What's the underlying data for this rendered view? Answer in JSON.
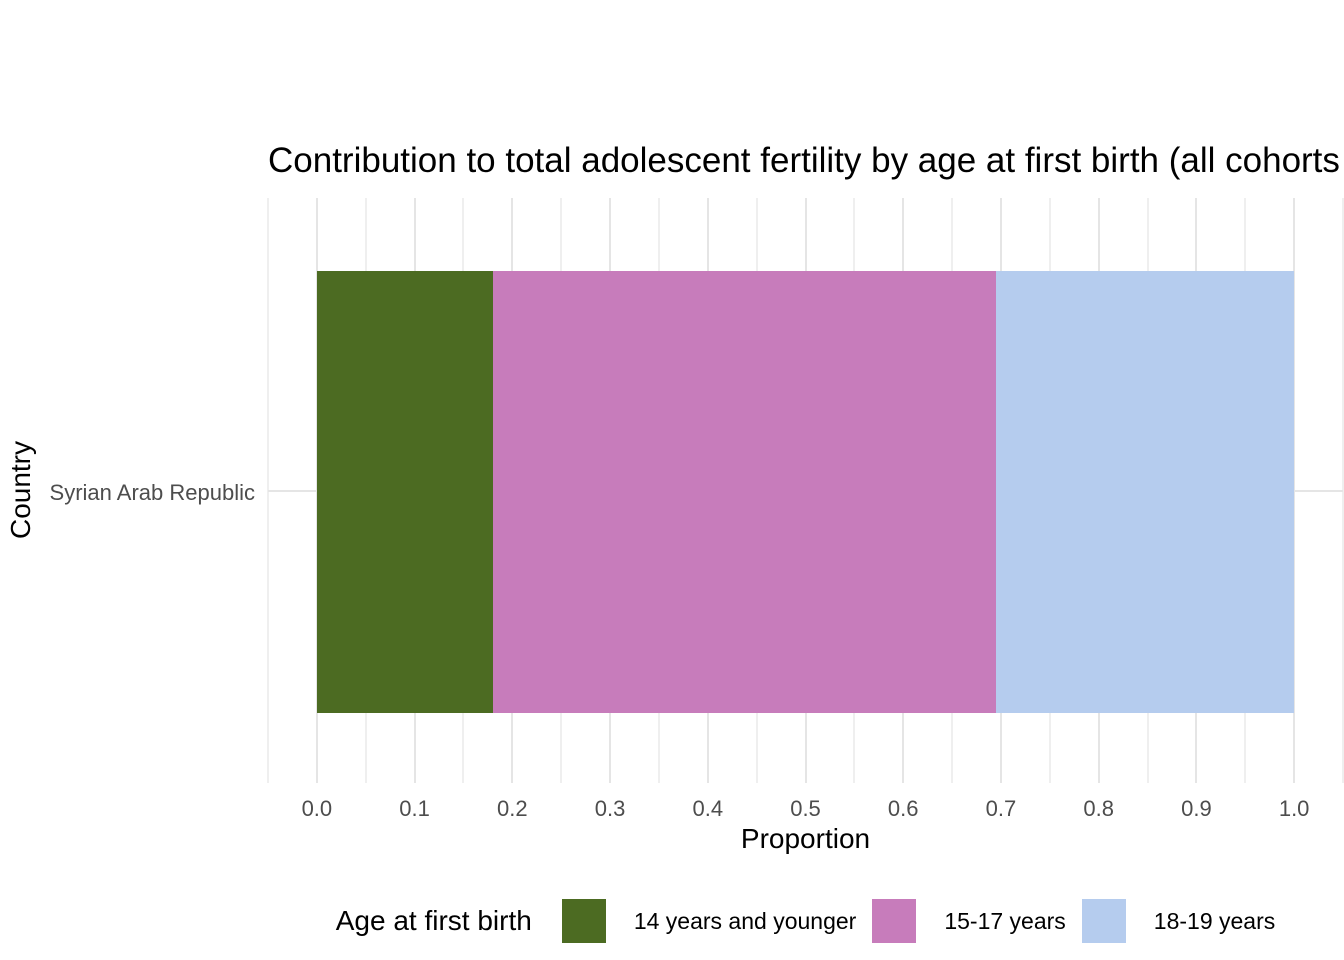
{
  "chart_data": {
    "type": "bar",
    "orientation": "horizontal",
    "stacked": true,
    "title": "Contribution to total adolescent fertility by age at first birth (all cohorts",
    "xlabel": "Proportion",
    "ylabel": "Country",
    "categories": [
      "Syrian Arab Republic"
    ],
    "series": [
      {
        "name": "14 years and younger",
        "values": [
          0.18
        ],
        "color": "#4C6B22"
      },
      {
        "name": "15-17 years",
        "values": [
          0.515
        ],
        "color": "#C77CBB"
      },
      {
        "name": "18-19 years",
        "values": [
          0.305
        ],
        "color": "#B5CCEE"
      }
    ],
    "xlim": [
      -0.05,
      1.05
    ],
    "x_major_ticks": [
      0.0,
      0.1,
      0.2,
      0.3,
      0.4,
      0.5,
      0.6,
      0.7,
      0.8,
      0.9,
      1.0
    ],
    "x_minor_step": 0.05,
    "grid": true,
    "legend_position": "bottom",
    "legend_title": "Age at first birth",
    "colors": {
      "background": "#FFFFFF",
      "text_black": "#000000",
      "text_gray": "#4D4D4D",
      "grid_major": "#E5E5E5",
      "grid_minor": "#EFEFEF"
    }
  }
}
